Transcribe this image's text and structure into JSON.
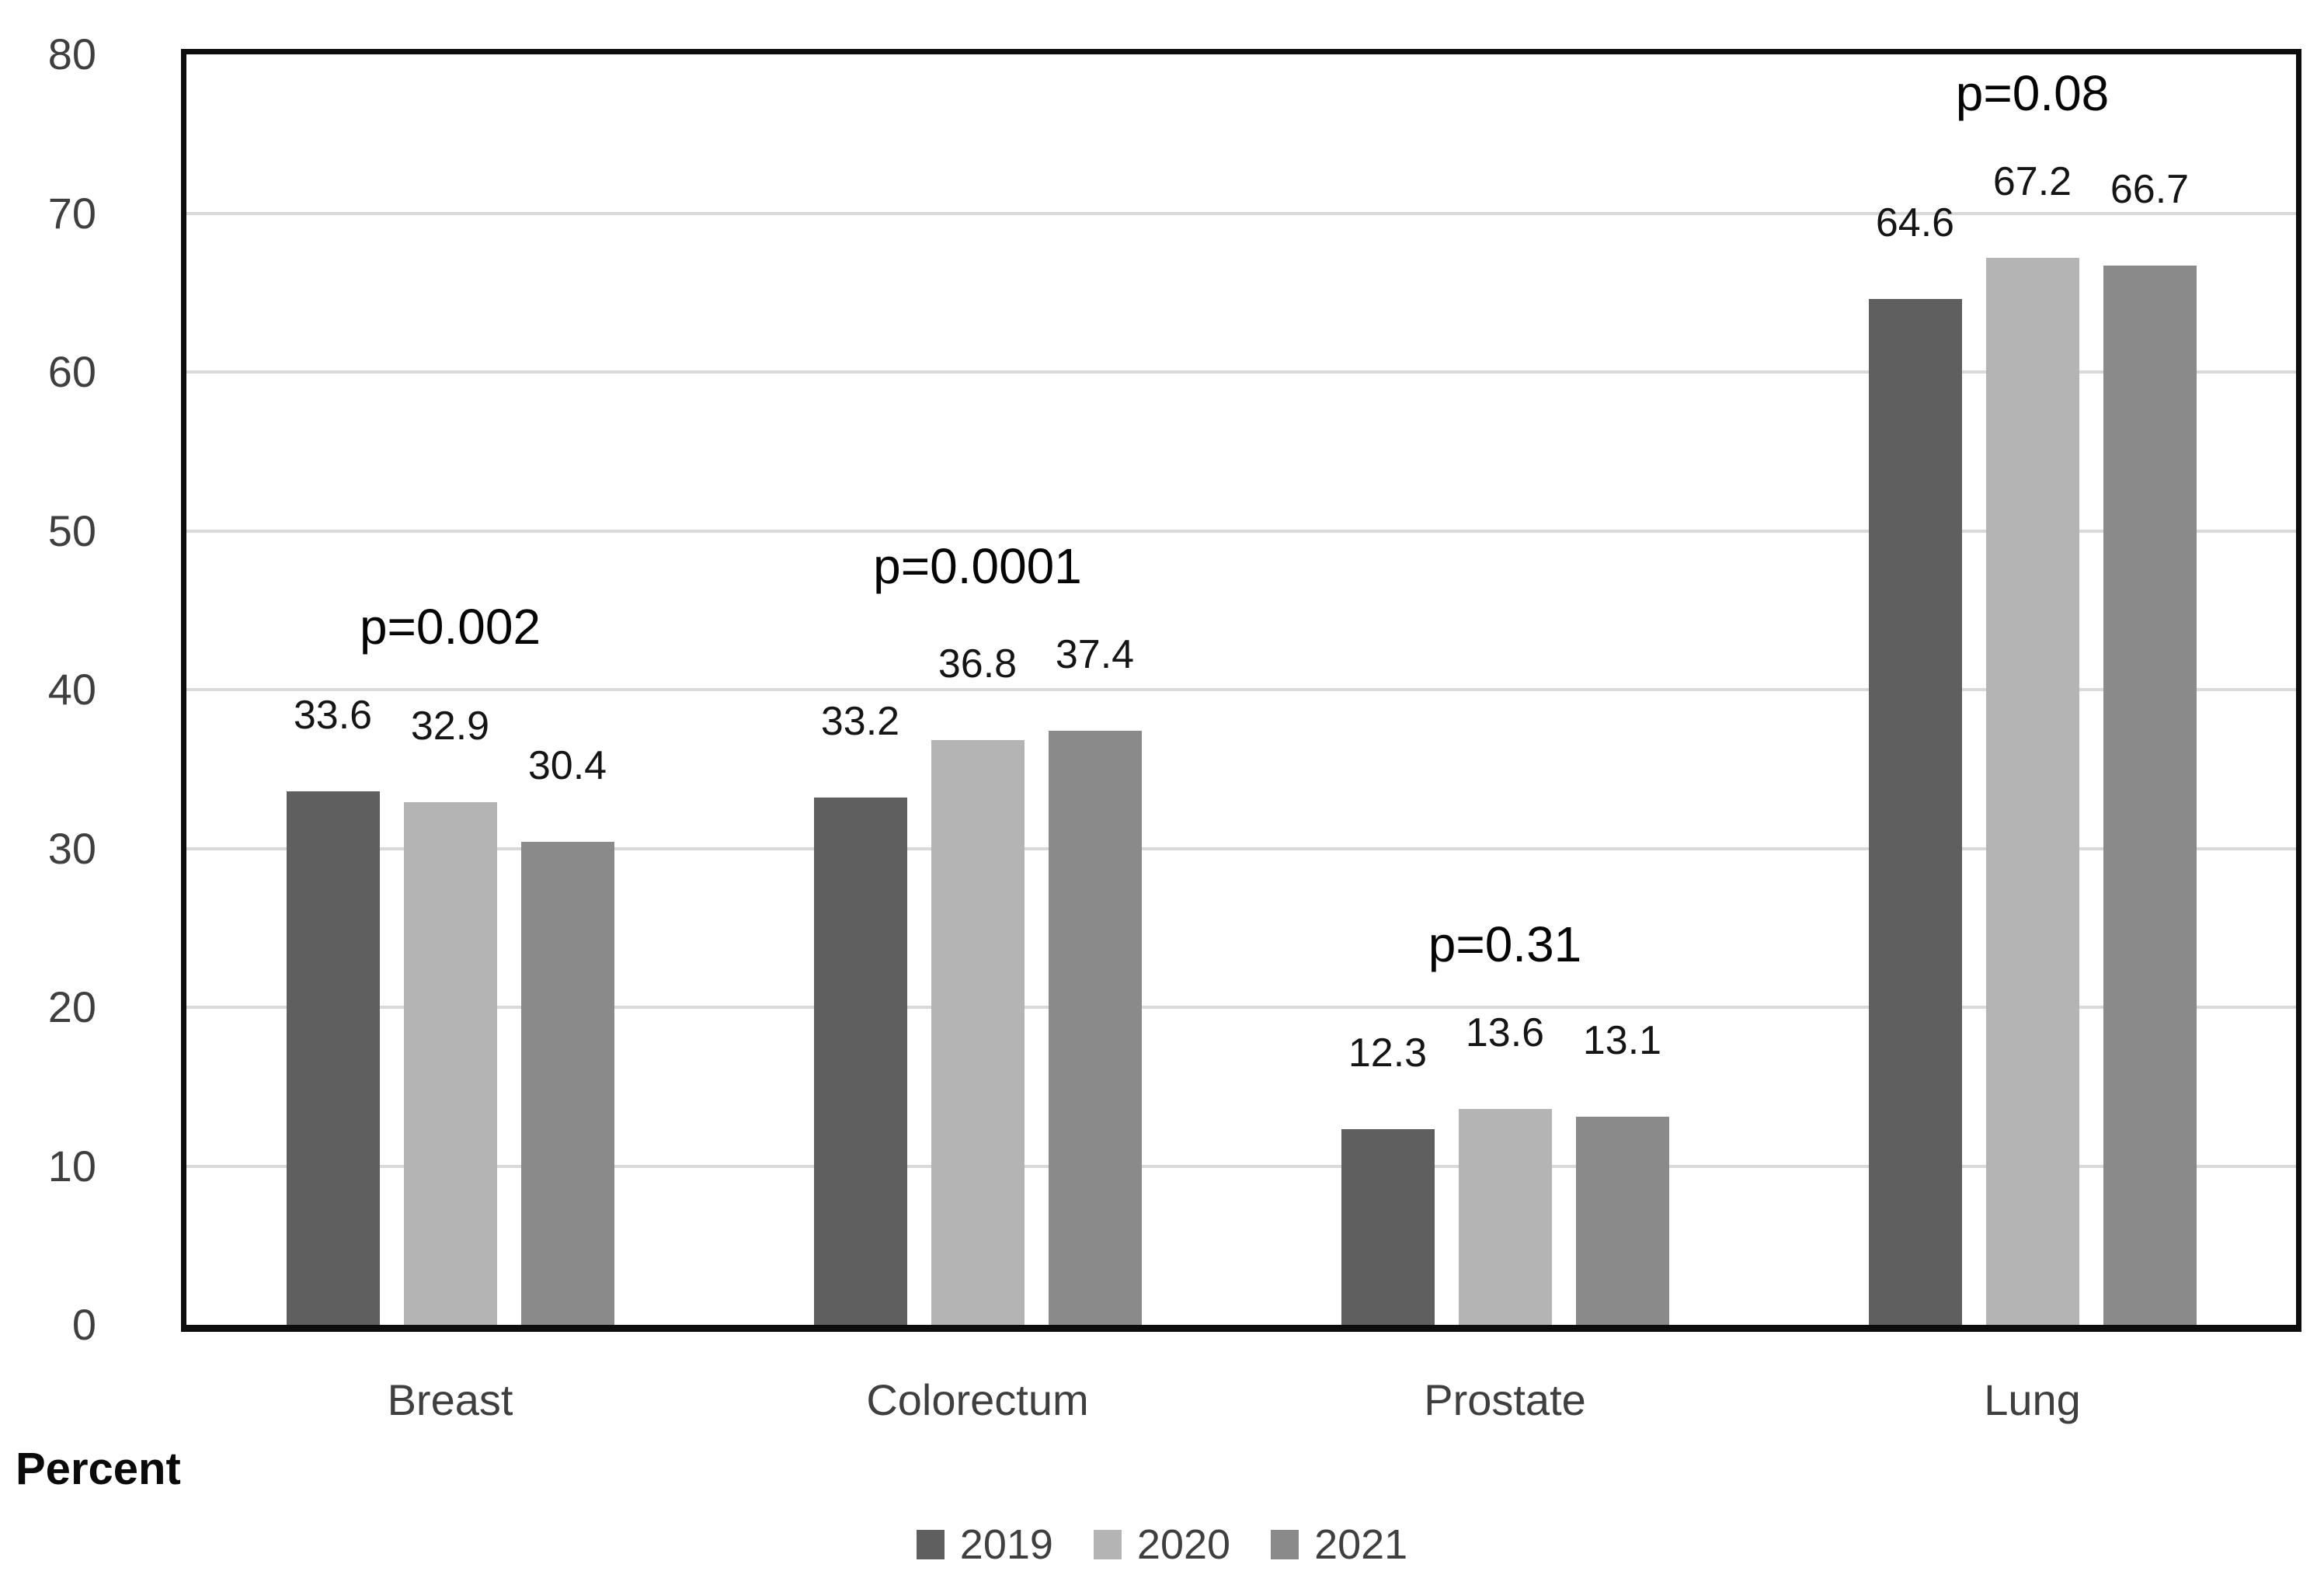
{
  "chart_data": {
    "type": "bar",
    "title": "",
    "categories": [
      "Breast",
      "Colorectum",
      "Prostate",
      "Lung"
    ],
    "series": [
      {
        "name": "2019",
        "color": "#5F5F5F",
        "values": [
          33.6,
          33.2,
          12.3,
          64.6
        ]
      },
      {
        "name": "2020",
        "color": "#B4B4B4",
        "values": [
          32.9,
          36.8,
          13.6,
          67.2
        ]
      },
      {
        "name": "2021",
        "color": "#8A8A8A",
        "values": [
          30.4,
          37.4,
          13.1,
          66.7
        ]
      }
    ],
    "value_labels": [
      [
        "33.6",
        "33.2",
        "12.3",
        "64.6"
      ],
      [
        "32.9",
        "36.8",
        "13.6",
        "67.2"
      ],
      [
        "30.4",
        "37.4",
        "13.1",
        "66.7"
      ]
    ],
    "p_value_annotations": [
      "p=0.002",
      "p=0.0001",
      "p=0.31",
      "p=0.08"
    ],
    "ylabel": "Percent",
    "xlabel": "",
    "ylim": [
      0,
      80
    ],
    "ytick_interval": 10,
    "ytick_labels": [
      "0",
      "10",
      "20",
      "30",
      "40",
      "50",
      "60",
      "70",
      "80"
    ],
    "grid": true,
    "legend_position": "bottom",
    "legend_entries": [
      "2019",
      "2020",
      "2021"
    ]
  },
  "styles": {
    "gridline_color": "#D9D9D9",
    "plot_border_color": "#0D0D0D",
    "tick_label_color": "#3F3F3F",
    "value_label_color": "#151515",
    "p_label_color": "#050505",
    "background_color": "#FFFFFF"
  }
}
